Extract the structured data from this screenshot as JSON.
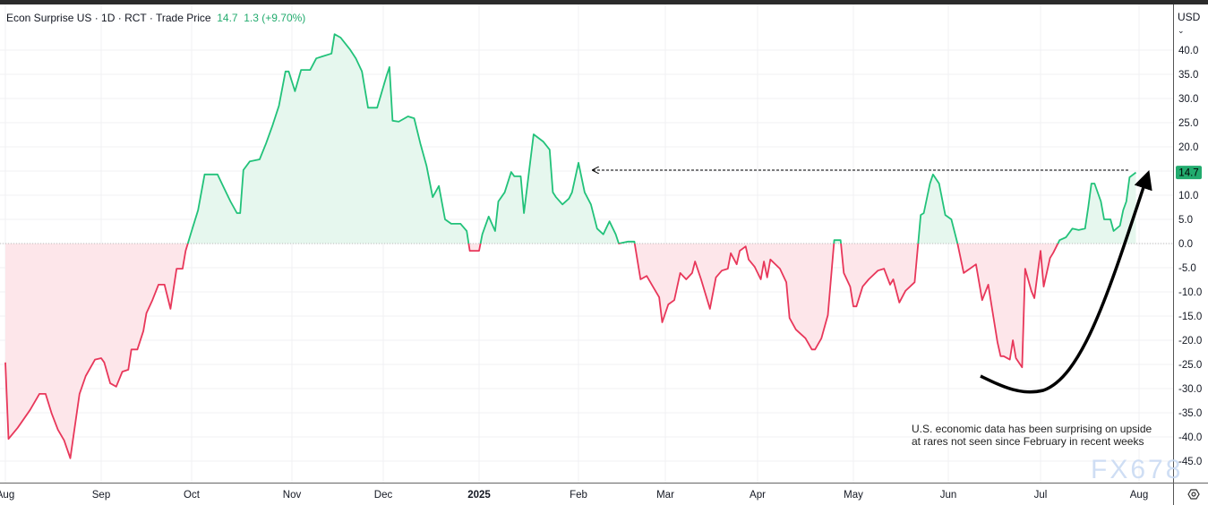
{
  "header": {
    "symbol": "Econ Surprise US",
    "interval": "1D",
    "source": "RCT",
    "price_type": "Trade Price",
    "last": "14.7",
    "change": "1.3",
    "change_pct": "(+9.70%)",
    "currency": "USD",
    "currency_icon": "chevron-down-icon"
  },
  "annotation": {
    "line1": "U.S. economic data has been surprising on upside",
    "line2": "at rares not seen since February in recent weeks"
  },
  "watermark": "FX678",
  "colors": {
    "up": "#22c27a",
    "down": "#e8375a",
    "up_fill": "#e6f7ee",
    "down_fill": "#fde6ea",
    "last_badge": "#22ab6e"
  },
  "chart_data": {
    "type": "area",
    "title": "",
    "xlabel": "",
    "ylabel": "",
    "ylim": [
      -50,
      45
    ],
    "y_ticks": [
      "40.0",
      "35.0",
      "30.0",
      "25.0",
      "20.0",
      "10.0",
      "5.0",
      "0.0",
      "-5.0",
      "-10.0",
      "-15.0",
      "-20.0",
      "-25.0",
      "-30.0",
      "-35.0",
      "-40.0",
      "-45.0"
    ],
    "x_ticks": [
      "Aug",
      "Sep",
      "Oct",
      "Nov",
      "Dec",
      "2025",
      "Feb",
      "Mar",
      "Apr",
      "May",
      "Jun",
      "Jul",
      "Aug"
    ],
    "last_value_label": "14.7",
    "baseline": 0,
    "grid": true,
    "points": [
      [
        "2024-08-01",
        -24.6
      ],
      [
        "2024-08-02",
        -40.4
      ],
      [
        "2024-08-05",
        -38.1
      ],
      [
        "2024-08-09",
        -34.4
      ],
      [
        "2024-08-12",
        -31.1
      ],
      [
        "2024-08-14",
        -31.1
      ],
      [
        "2024-08-16",
        -35.2
      ],
      [
        "2024-08-18",
        -38.5
      ],
      [
        "2024-08-20",
        -40.7
      ],
      [
        "2024-08-22",
        -44.4
      ],
      [
        "2024-08-25",
        -31.1
      ],
      [
        "2024-08-27",
        -27.4
      ],
      [
        "2024-08-30",
        -24.0
      ],
      [
        "2024-09-01",
        -23.7
      ],
      [
        "2024-09-02",
        -24.6
      ],
      [
        "2024-09-04",
        -28.9
      ],
      [
        "2024-09-06",
        -29.6
      ],
      [
        "2024-09-08",
        -26.5
      ],
      [
        "2024-09-10",
        -26.1
      ],
      [
        "2024-09-11",
        -21.9
      ],
      [
        "2024-09-13",
        -21.9
      ],
      [
        "2024-09-15",
        -18.1
      ],
      [
        "2024-09-16",
        -14.4
      ],
      [
        "2024-09-18",
        -11.7
      ],
      [
        "2024-09-20",
        -8.5
      ],
      [
        "2024-09-22",
        -8.5
      ],
      [
        "2024-09-24",
        -13.5
      ],
      [
        "2024-09-26",
        -5.2
      ],
      [
        "2024-09-28",
        -5.2
      ],
      [
        "2024-09-29",
        -1.5
      ],
      [
        "2024-10-01",
        2.6
      ],
      [
        "2024-10-03",
        6.9
      ],
      [
        "2024-10-05",
        14.3
      ],
      [
        "2024-10-09",
        14.3
      ],
      [
        "2024-10-11",
        11.5
      ],
      [
        "2024-10-13",
        8.7
      ],
      [
        "2024-10-15",
        6.3
      ],
      [
        "2024-10-16",
        6.3
      ],
      [
        "2024-10-17",
        15.2
      ],
      [
        "2024-10-19",
        17.0
      ],
      [
        "2024-10-22",
        17.4
      ],
      [
        "2024-10-24",
        20.7
      ],
      [
        "2024-10-26",
        24.4
      ],
      [
        "2024-10-28",
        28.5
      ],
      [
        "2024-10-30",
        35.6
      ],
      [
        "2024-10-31",
        35.6
      ],
      [
        "2024-11-02",
        31.5
      ],
      [
        "2024-11-04",
        35.9
      ],
      [
        "2024-11-07",
        35.9
      ],
      [
        "2024-11-09",
        38.3
      ],
      [
        "2024-11-11",
        38.7
      ],
      [
        "2024-11-14",
        39.3
      ],
      [
        "2024-11-15",
        43.3
      ],
      [
        "2024-11-17",
        42.6
      ],
      [
        "2024-11-20",
        40.2
      ],
      [
        "2024-11-22",
        38.3
      ],
      [
        "2024-11-24",
        35.6
      ],
      [
        "2024-11-26",
        28.1
      ],
      [
        "2024-11-29",
        28.1
      ],
      [
        "2024-12-02",
        34.6
      ],
      [
        "2024-12-03",
        36.5
      ],
      [
        "2024-12-04",
        25.4
      ],
      [
        "2024-12-06",
        25.2
      ],
      [
        "2024-12-09",
        26.3
      ],
      [
        "2024-12-11",
        25.9
      ],
      [
        "2024-12-13",
        20.7
      ],
      [
        "2024-12-15",
        16.1
      ],
      [
        "2024-12-17",
        9.6
      ],
      [
        "2024-12-19",
        11.9
      ],
      [
        "2024-12-21",
        5.0
      ],
      [
        "2024-12-23",
        4.1
      ],
      [
        "2024-12-26",
        4.1
      ],
      [
        "2024-12-28",
        2.6
      ],
      [
        "2024-12-29",
        -1.5
      ],
      [
        "2025-01-01",
        -1.5
      ],
      [
        "2025-01-02",
        1.9
      ],
      [
        "2025-01-04",
        5.6
      ],
      [
        "2025-01-06",
        2.6
      ],
      [
        "2025-01-07",
        8.7
      ],
      [
        "2025-01-09",
        10.6
      ],
      [
        "2025-01-11",
        14.8
      ],
      [
        "2025-01-12",
        13.9
      ],
      [
        "2025-01-14",
        13.9
      ],
      [
        "2025-01-15",
        6.3
      ],
      [
        "2025-01-18",
        22.6
      ],
      [
        "2025-01-21",
        21.1
      ],
      [
        "2025-01-23",
        19.4
      ],
      [
        "2025-01-24",
        10.6
      ],
      [
        "2025-01-25",
        9.6
      ],
      [
        "2025-01-27",
        8.1
      ],
      [
        "2025-01-29",
        9.3
      ],
      [
        "2025-01-30",
        10.6
      ],
      [
        "2025-02-01",
        16.7
      ],
      [
        "2025-02-03",
        10.6
      ],
      [
        "2025-02-05",
        8.1
      ],
      [
        "2025-02-07",
        3.1
      ],
      [
        "2025-02-09",
        1.9
      ],
      [
        "2025-02-11",
        4.6
      ],
      [
        "2025-02-13",
        1.9
      ],
      [
        "2025-02-14",
        0.0
      ],
      [
        "2025-02-17",
        0.4
      ],
      [
        "2025-02-19",
        0.4
      ],
      [
        "2025-02-21",
        -7.4
      ],
      [
        "2025-02-23",
        -6.7
      ],
      [
        "2025-02-25",
        -8.9
      ],
      [
        "2025-02-27",
        -11.1
      ],
      [
        "2025-02-28",
        -16.3
      ],
      [
        "2025-03-02",
        -12.6
      ],
      [
        "2025-03-04",
        -11.7
      ],
      [
        "2025-03-06",
        -6.1
      ],
      [
        "2025-03-08",
        -7.4
      ],
      [
        "2025-03-10",
        -6.1
      ],
      [
        "2025-03-11",
        -3.7
      ],
      [
        "2025-03-13",
        -7.4
      ],
      [
        "2025-03-16",
        -13.5
      ],
      [
        "2025-03-18",
        -7.0
      ],
      [
        "2025-03-20",
        -5.6
      ],
      [
        "2025-03-22",
        -5.2
      ],
      [
        "2025-03-23",
        -2.0
      ],
      [
        "2025-03-25",
        -4.3
      ],
      [
        "2025-03-26",
        -1.5
      ],
      [
        "2025-03-28",
        -0.6
      ],
      [
        "2025-03-29",
        -3.3
      ],
      [
        "2025-03-31",
        -4.8
      ],
      [
        "2025-04-02",
        -7.4
      ],
      [
        "2025-04-03",
        -3.7
      ],
      [
        "2025-04-04",
        -7.0
      ],
      [
        "2025-04-05",
        -3.3
      ],
      [
        "2025-04-08",
        -5.2
      ],
      [
        "2025-04-10",
        -8.0
      ],
      [
        "2025-04-11",
        -15.4
      ],
      [
        "2025-04-13",
        -17.8
      ],
      [
        "2025-04-16",
        -19.6
      ],
      [
        "2025-04-18",
        -21.9
      ],
      [
        "2025-04-19",
        -21.9
      ],
      [
        "2025-04-21",
        -19.6
      ],
      [
        "2025-04-23",
        -14.8
      ],
      [
        "2025-04-25",
        0.7
      ],
      [
        "2025-04-27",
        0.7
      ],
      [
        "2025-04-28",
        -6.1
      ],
      [
        "2025-04-30",
        -8.9
      ],
      [
        "2025-05-01",
        -13.0
      ],
      [
        "2025-05-02",
        -13.0
      ],
      [
        "2025-05-04",
        -8.9
      ],
      [
        "2025-05-06",
        -7.4
      ],
      [
        "2025-05-09",
        -5.6
      ],
      [
        "2025-05-11",
        -5.2
      ],
      [
        "2025-05-13",
        -8.5
      ],
      [
        "2025-05-14",
        -7.4
      ],
      [
        "2025-05-16",
        -12.2
      ],
      [
        "2025-05-18",
        -9.8
      ],
      [
        "2025-05-21",
        -8.0
      ],
      [
        "2025-05-23",
        5.9
      ],
      [
        "2025-05-24",
        6.3
      ],
      [
        "2025-05-26",
        12.4
      ],
      [
        "2025-05-27",
        14.3
      ],
      [
        "2025-05-29",
        12.4
      ],
      [
        "2025-05-31",
        5.9
      ],
      [
        "2025-06-02",
        5.0
      ],
      [
        "2025-06-04",
        0.0
      ],
      [
        "2025-06-06",
        -6.1
      ],
      [
        "2025-06-08",
        -5.2
      ],
      [
        "2025-06-10",
        -4.3
      ],
      [
        "2025-06-12",
        -11.7
      ],
      [
        "2025-06-14",
        -8.5
      ],
      [
        "2025-06-15",
        -12.6
      ],
      [
        "2025-06-17",
        -20.4
      ],
      [
        "2025-06-18",
        -23.3
      ],
      [
        "2025-06-19",
        -23.3
      ],
      [
        "2025-06-21",
        -24.0
      ],
      [
        "2025-06-22",
        -20.0
      ],
      [
        "2025-06-23",
        -23.7
      ],
      [
        "2025-06-25",
        -25.6
      ],
      [
        "2025-06-26",
        -5.2
      ],
      [
        "2025-06-28",
        -9.8
      ],
      [
        "2025-06-29",
        -11.3
      ],
      [
        "2025-07-01",
        -1.5
      ],
      [
        "2025-07-02",
        -8.9
      ],
      [
        "2025-07-04",
        -3.0
      ],
      [
        "2025-07-05",
        -1.9
      ],
      [
        "2025-07-07",
        0.7
      ],
      [
        "2025-07-09",
        1.3
      ],
      [
        "2025-07-11",
        3.1
      ],
      [
        "2025-07-13",
        2.8
      ],
      [
        "2025-07-15",
        3.1
      ],
      [
        "2025-07-16",
        7.4
      ],
      [
        "2025-07-17",
        12.4
      ],
      [
        "2025-07-18",
        12.4
      ],
      [
        "2025-07-20",
        8.7
      ],
      [
        "2025-07-21",
        5.0
      ],
      [
        "2025-07-23",
        5.0
      ],
      [
        "2025-07-24",
        2.6
      ],
      [
        "2025-07-26",
        3.7
      ],
      [
        "2025-07-27",
        6.9
      ],
      [
        "2025-07-28",
        8.7
      ],
      [
        "2025-07-29",
        13.7
      ],
      [
        "2025-07-31",
        14.7
      ]
    ]
  }
}
